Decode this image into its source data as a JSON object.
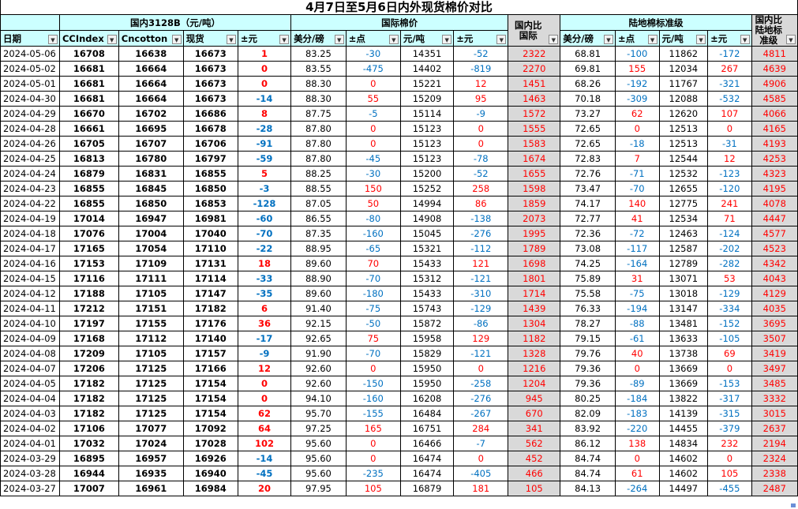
{
  "title": "4月7日至5月6日内外现货棉价对比",
  "groups": {
    "domestic": "国内3128B（元/吨）",
    "international": "国际棉价",
    "domestic_vs_intl": "国内比国际",
    "landed": "陆地棉标准级",
    "domestic_vs_landed": "国内比陆地标准级"
  },
  "columns": [
    "日期",
    "CCIndex",
    "Cncotton",
    "现货",
    "±元",
    "美分/磅",
    "±点",
    "元/吨",
    "±元",
    "国内比国际",
    "美分/磅",
    "±点",
    "元/吨",
    "±元",
    "国内比陆地标准级"
  ],
  "rows": [
    {
      "date": "2024-05-06",
      "cci": "16708",
      "cnc": "16638",
      "spot": "16673",
      "chg": "1",
      "us": "83.25",
      "pts": "-30",
      "yt": "14351",
      "yc": "-52",
      "diff": "2322",
      "lus": "68.81",
      "lpts": "-100",
      "lyt": "11862",
      "lyc": "-172",
      "ldiff": "4811"
    },
    {
      "date": "2024-05-02",
      "cci": "16681",
      "cnc": "16664",
      "spot": "16673",
      "chg": "0",
      "us": "83.55",
      "pts": "-475",
      "yt": "14402",
      "yc": "-819",
      "diff": "2270",
      "lus": "69.81",
      "lpts": "155",
      "lyt": "12034",
      "lyc": "267",
      "ldiff": "4639"
    },
    {
      "date": "2024-05-01",
      "cci": "16681",
      "cnc": "16664",
      "spot": "16673",
      "chg": "0",
      "us": "88.30",
      "pts": "0",
      "yt": "15221",
      "yc": "12",
      "diff": "1451",
      "lus": "68.26",
      "lpts": "-192",
      "lyt": "11767",
      "lyc": "-321",
      "ldiff": "4906"
    },
    {
      "date": "2024-04-30",
      "cci": "16681",
      "cnc": "16664",
      "spot": "16673",
      "chg": "-14",
      "us": "88.30",
      "pts": "55",
      "yt": "15209",
      "yc": "95",
      "diff": "1463",
      "lus": "70.18",
      "lpts": "-309",
      "lyt": "12088",
      "lyc": "-532",
      "ldiff": "4585"
    },
    {
      "date": "2024-04-29",
      "cci": "16670",
      "cnc": "16702",
      "spot": "16686",
      "chg": "8",
      "us": "87.75",
      "pts": "-5",
      "yt": "15114",
      "yc": "-9",
      "diff": "1572",
      "lus": "73.27",
      "lpts": "62",
      "lyt": "12620",
      "lyc": "107",
      "ldiff": "4066"
    },
    {
      "date": "2024-04-28",
      "cci": "16661",
      "cnc": "16695",
      "spot": "16678",
      "chg": "-28",
      "us": "87.80",
      "pts": "0",
      "yt": "15123",
      "yc": "0",
      "diff": "1555",
      "lus": "72.65",
      "lpts": "0",
      "lyt": "12513",
      "lyc": "0",
      "ldiff": "4165"
    },
    {
      "date": "2024-04-26",
      "cci": "16705",
      "cnc": "16707",
      "spot": "16706",
      "chg": "-91",
      "us": "87.80",
      "pts": "0",
      "yt": "15123",
      "yc": "0",
      "diff": "1583",
      "lus": "72.65",
      "lpts": "-18",
      "lyt": "12513",
      "lyc": "-31",
      "ldiff": "4193"
    },
    {
      "date": "2024-04-25",
      "cci": "16813",
      "cnc": "16780",
      "spot": "16797",
      "chg": "-59",
      "us": "87.80",
      "pts": "-45",
      "yt": "15123",
      "yc": "-78",
      "diff": "1674",
      "lus": "72.83",
      "lpts": "7",
      "lyt": "12544",
      "lyc": "12",
      "ldiff": "4253"
    },
    {
      "date": "2024-04-24",
      "cci": "16879",
      "cnc": "16831",
      "spot": "16855",
      "chg": "5",
      "us": "88.25",
      "pts": "-30",
      "yt": "15200",
      "yc": "-52",
      "diff": "1655",
      "lus": "72.76",
      "lpts": "-71",
      "lyt": "12532",
      "lyc": "-123",
      "ldiff": "4323"
    },
    {
      "date": "2024-04-23",
      "cci": "16855",
      "cnc": "16845",
      "spot": "16850",
      "chg": "-3",
      "us": "88.55",
      "pts": "150",
      "yt": "15252",
      "yc": "258",
      "diff": "1598",
      "lus": "73.47",
      "lpts": "-70",
      "lyt": "12655",
      "lyc": "-120",
      "ldiff": "4195"
    },
    {
      "date": "2024-04-22",
      "cci": "16855",
      "cnc": "16850",
      "spot": "16853",
      "chg": "-128",
      "us": "87.05",
      "pts": "50",
      "yt": "14994",
      "yc": "86",
      "diff": "1859",
      "lus": "74.17",
      "lpts": "140",
      "lyt": "12775",
      "lyc": "241",
      "ldiff": "4078"
    },
    {
      "date": "2024-04-19",
      "cci": "17014",
      "cnc": "16947",
      "spot": "16981",
      "chg": "-60",
      "us": "86.55",
      "pts": "-80",
      "yt": "14908",
      "yc": "-138",
      "diff": "2073",
      "lus": "72.77",
      "lpts": "41",
      "lyt": "12534",
      "lyc": "71",
      "ldiff": "4447"
    },
    {
      "date": "2024-04-18",
      "cci": "17076",
      "cnc": "17004",
      "spot": "17040",
      "chg": "-70",
      "us": "87.35",
      "pts": "-160",
      "yt": "15045",
      "yc": "-276",
      "diff": "1995",
      "lus": "72.36",
      "lpts": "-72",
      "lyt": "12463",
      "lyc": "-124",
      "ldiff": "4577"
    },
    {
      "date": "2024-04-17",
      "cci": "17165",
      "cnc": "17054",
      "spot": "17110",
      "chg": "-22",
      "us": "88.95",
      "pts": "-65",
      "yt": "15321",
      "yc": "-112",
      "diff": "1789",
      "lus": "73.08",
      "lpts": "-117",
      "lyt": "12587",
      "lyc": "-202",
      "ldiff": "4523"
    },
    {
      "date": "2024-04-16",
      "cci": "17153",
      "cnc": "17109",
      "spot": "17131",
      "chg": "18",
      "us": "89.60",
      "pts": "70",
      "yt": "15433",
      "yc": "121",
      "diff": "1698",
      "lus": "74.25",
      "lpts": "-164",
      "lyt": "12789",
      "lyc": "-282",
      "ldiff": "4342"
    },
    {
      "date": "2024-04-15",
      "cci": "17116",
      "cnc": "17111",
      "spot": "17114",
      "chg": "-33",
      "us": "88.90",
      "pts": "-70",
      "yt": "15312",
      "yc": "-121",
      "diff": "1801",
      "lus": "75.89",
      "lpts": "31",
      "lyt": "13071",
      "lyc": "53",
      "ldiff": "4043"
    },
    {
      "date": "2024-04-12",
      "cci": "17188",
      "cnc": "17105",
      "spot": "17147",
      "chg": "-35",
      "us": "89.60",
      "pts": "-180",
      "yt": "15433",
      "yc": "-310",
      "diff": "1714",
      "lus": "75.58",
      "lpts": "-75",
      "lyt": "13018",
      "lyc": "-129",
      "ldiff": "4129"
    },
    {
      "date": "2024-04-11",
      "cci": "17212",
      "cnc": "17151",
      "spot": "17182",
      "chg": "6",
      "us": "91.40",
      "pts": "-75",
      "yt": "15743",
      "yc": "-129",
      "diff": "1439",
      "lus": "76.33",
      "lpts": "-194",
      "lyt": "13147",
      "lyc": "-334",
      "ldiff": "4035"
    },
    {
      "date": "2024-04-10",
      "cci": "17197",
      "cnc": "17155",
      "spot": "17176",
      "chg": "36",
      "us": "92.15",
      "pts": "-50",
      "yt": "15872",
      "yc": "-86",
      "diff": "1304",
      "lus": "78.27",
      "lpts": "-88",
      "lyt": "13481",
      "lyc": "-152",
      "ldiff": "3695"
    },
    {
      "date": "2024-04-09",
      "cci": "17168",
      "cnc": "17112",
      "spot": "17140",
      "chg": "-17",
      "us": "92.65",
      "pts": "75",
      "yt": "15958",
      "yc": "129",
      "diff": "1182",
      "lus": "79.15",
      "lpts": "-61",
      "lyt": "13633",
      "lyc": "-105",
      "ldiff": "3507"
    },
    {
      "date": "2024-04-08",
      "cci": "17209",
      "cnc": "17105",
      "spot": "17157",
      "chg": "-9",
      "us": "91.90",
      "pts": "-70",
      "yt": "15829",
      "yc": "-121",
      "diff": "1328",
      "lus": "79.76",
      "lpts": "40",
      "lyt": "13738",
      "lyc": "69",
      "ldiff": "3419"
    },
    {
      "date": "2024-04-07",
      "cci": "17206",
      "cnc": "17125",
      "spot": "17166",
      "chg": "12",
      "us": "92.60",
      "pts": "0",
      "yt": "15950",
      "yc": "0",
      "diff": "1216",
      "lus": "79.36",
      "lpts": "0",
      "lyt": "13669",
      "lyc": "0",
      "ldiff": "3497"
    },
    {
      "date": "2024-04-05",
      "cci": "17182",
      "cnc": "17125",
      "spot": "17154",
      "chg": "0",
      "us": "92.60",
      "pts": "-150",
      "yt": "15950",
      "yc": "-258",
      "diff": "1204",
      "lus": "79.36",
      "lpts": "-89",
      "lyt": "13669",
      "lyc": "-153",
      "ldiff": "3485"
    },
    {
      "date": "2024-04-04",
      "cci": "17182",
      "cnc": "17125",
      "spot": "17154",
      "chg": "0",
      "us": "94.10",
      "pts": "-160",
      "yt": "16208",
      "yc": "-276",
      "diff": "945",
      "lus": "80.25",
      "lpts": "-184",
      "lyt": "13822",
      "lyc": "-317",
      "ldiff": "3332"
    },
    {
      "date": "2024-04-03",
      "cci": "17182",
      "cnc": "17125",
      "spot": "17154",
      "chg": "62",
      "us": "95.70",
      "pts": "-155",
      "yt": "16484",
      "yc": "-267",
      "diff": "670",
      "lus": "82.09",
      "lpts": "-183",
      "lyt": "14139",
      "lyc": "-315",
      "ldiff": "3015"
    },
    {
      "date": "2024-04-02",
      "cci": "17106",
      "cnc": "17077",
      "spot": "17092",
      "chg": "64",
      "us": "97.25",
      "pts": "165",
      "yt": "16751",
      "yc": "284",
      "diff": "341",
      "lus": "83.92",
      "lpts": "-220",
      "lyt": "14455",
      "lyc": "-379",
      "ldiff": "2637"
    },
    {
      "date": "2024-04-01",
      "cci": "17032",
      "cnc": "17024",
      "spot": "17028",
      "chg": "102",
      "us": "95.60",
      "pts": "0",
      "yt": "16466",
      "yc": "-7",
      "diff": "562",
      "lus": "86.12",
      "lpts": "138",
      "lyt": "14834",
      "lyc": "232",
      "ldiff": "2194"
    },
    {
      "date": "2024-03-29",
      "cci": "16895",
      "cnc": "16957",
      "spot": "16926",
      "chg": "-14",
      "us": "95.60",
      "pts": "0",
      "yt": "16474",
      "yc": "0",
      "diff": "452",
      "lus": "84.74",
      "lpts": "0",
      "lyt": "14602",
      "lyc": "0",
      "ldiff": "2324"
    },
    {
      "date": "2024-03-28",
      "cci": "16944",
      "cnc": "16935",
      "spot": "16940",
      "chg": "-45",
      "us": "95.60",
      "pts": "-235",
      "yt": "16474",
      "yc": "-405",
      "diff": "466",
      "lus": "84.74",
      "lpts": "61",
      "lyt": "14602",
      "lyc": "105",
      "ldiff": "2338"
    },
    {
      "date": "2024-03-27",
      "cci": "17007",
      "cnc": "16961",
      "spot": "16984",
      "chg": "20",
      "us": "97.95",
      "pts": "105",
      "yt": "16879",
      "yc": "181",
      "diff": "105",
      "lus": "84.13",
      "lpts": "-264",
      "lyt": "14497",
      "lyc": "-455",
      "ldiff": "2487"
    }
  ]
}
